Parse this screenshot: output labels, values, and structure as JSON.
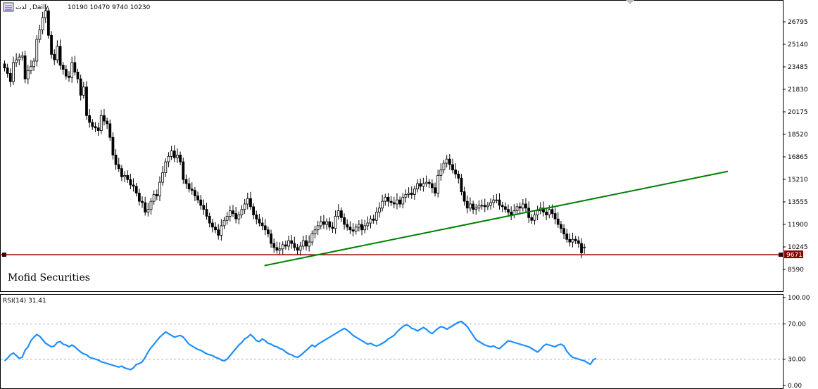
{
  "header": {
    "symbol": "لذت",
    "timeframe": "Daily",
    "ohlc": "10190 10470 9740 10230",
    "separator": ","
  },
  "watermark": "Mofid Securities",
  "colors": {
    "bull_candle": "#ffffff",
    "bear_candle": "#000000",
    "support_line": "#8b0000",
    "trendline": "#008000",
    "rsi_line": "#1e90ff",
    "level_label_bg": "#8b0000",
    "watermark": "#1a7f86"
  },
  "chart_data": [
    {
      "type": "candlestick",
      "title": "لذت,Daily",
      "ylim": [
        7800,
        28300
      ],
      "y_ticks": [
        "26795",
        "25140",
        "23485",
        "21830",
        "20175",
        "18520",
        "16865",
        "15210",
        "13555",
        "11900",
        "10245",
        "8590"
      ],
      "last_ohlc": {
        "open": 10190,
        "high": 10470,
        "low": 9740,
        "close": 10230
      },
      "horizontal_level": {
        "value": 9671,
        "label": "9671"
      },
      "trendline": {
        "start": {
          "bar": 0.4477,
          "price": 8870
        },
        "end": {
          "bar": 1.243,
          "price": 15800
        }
      },
      "closes": [
        23400,
        23000,
        22400,
        23800,
        24000,
        24200,
        24300,
        22600,
        23200,
        23500,
        23900,
        25500,
        26200,
        27100,
        27600,
        25800,
        24400,
        24000,
        25000,
        23600,
        23300,
        22800,
        22700,
        23800,
        23100,
        22600,
        21400,
        22000,
        19900,
        19400,
        19100,
        19000,
        18800,
        19900,
        19500,
        19300,
        18300,
        17000,
        16300,
        16000,
        15400,
        15500,
        15200,
        14800,
        14700,
        14200,
        13600,
        13500,
        12800,
        13000,
        13600,
        14100,
        14000,
        15000,
        15700,
        16500,
        16900,
        17300,
        16800,
        17000,
        16500,
        15200,
        14900,
        14500,
        14400,
        14000,
        13700,
        13300,
        13000,
        12500,
        12000,
        11700,
        11500,
        11100,
        11800,
        12200,
        12500,
        12900,
        12700,
        12300,
        12600,
        13000,
        13400,
        13800,
        13200,
        12600,
        12300,
        12000,
        11800,
        11500,
        11200,
        10500,
        10200,
        10000,
        10100,
        10400,
        10300,
        10700,
        10500,
        10200,
        10000,
        10300,
        10700,
        10300,
        10600,
        11200,
        11500,
        11800,
        12100,
        11900,
        12100,
        11700,
        11600,
        12500,
        12900,
        12400,
        11900,
        11700,
        11500,
        11400,
        11700,
        11900,
        11500,
        11800,
        12000,
        12300,
        12200,
        12800,
        13100,
        13600,
        13900,
        13600,
        13500,
        13400,
        13700,
        13400,
        13900,
        14100,
        14200,
        14100,
        14500,
        14900,
        14700,
        14900,
        15000,
        14900,
        14600,
        14200,
        15500,
        15900,
        16400,
        16700,
        16300,
        15900,
        15600,
        15300,
        14300,
        13600,
        13100,
        13400,
        13000,
        13100,
        13300,
        13300,
        13200,
        13300,
        13500,
        13700,
        13700,
        13300,
        13200,
        13000,
        12800,
        12600,
        12900,
        13200,
        13100,
        13400,
        13100,
        12400,
        12200,
        12600,
        12900,
        13100,
        12800,
        12600,
        13000,
        12700,
        12300,
        11900,
        11600,
        11200,
        10800,
        10600,
        10800,
        10700,
        10500,
        9800,
        10200
      ]
    },
    {
      "type": "line",
      "title": "RSI(14) 31.41",
      "series_label": "RSI(14)",
      "last_value": "31.41",
      "ylim": [
        0,
        100
      ],
      "y_ticks": [
        "100.00",
        "70.00",
        "30.00",
        "0.00"
      ],
      "levels": [
        70,
        30
      ],
      "values": [
        28,
        31,
        35,
        37,
        34,
        31,
        32,
        40,
        44,
        51,
        55,
        58,
        56,
        52,
        48,
        46,
        44,
        45,
        49,
        50,
        47,
        46,
        44,
        46,
        44,
        41,
        38,
        36,
        35,
        32,
        31,
        30,
        29,
        27,
        26,
        25,
        24,
        23,
        22,
        21,
        22,
        20,
        19,
        18,
        20,
        24,
        25,
        27,
        32,
        38,
        43,
        47,
        51,
        55,
        58,
        61,
        59,
        57,
        55,
        56,
        57,
        55,
        51,
        47,
        45,
        43,
        41,
        40,
        38,
        36,
        35,
        34,
        32,
        31,
        29,
        28,
        30,
        34,
        38,
        42,
        46,
        49,
        53,
        55,
        58,
        55,
        51,
        50,
        53,
        51,
        48,
        47,
        45,
        44,
        42,
        41,
        38,
        36,
        35,
        33,
        32,
        34,
        37,
        40,
        43,
        46,
        44,
        47,
        49,
        51,
        53,
        55,
        57,
        59,
        61,
        63,
        65,
        63,
        60,
        57,
        55,
        53,
        51,
        49,
        47,
        48,
        46,
        45,
        46,
        48,
        50,
        53,
        55,
        57,
        61,
        64,
        67,
        69,
        68,
        65,
        64,
        62,
        64,
        66,
        64,
        61,
        59,
        62,
        65,
        67,
        66,
        64,
        66,
        68,
        70,
        72,
        73,
        70,
        67,
        62,
        57,
        52,
        50,
        48,
        46,
        45,
        44,
        45,
        43,
        42,
        45,
        48,
        51,
        50,
        49,
        48,
        47,
        46,
        45,
        44,
        42,
        40,
        38,
        41,
        45,
        47,
        46,
        45,
        44,
        46,
        47,
        45,
        39,
        35,
        32,
        31,
        30,
        29,
        28,
        26,
        24,
        29,
        31
      ]
    }
  ]
}
